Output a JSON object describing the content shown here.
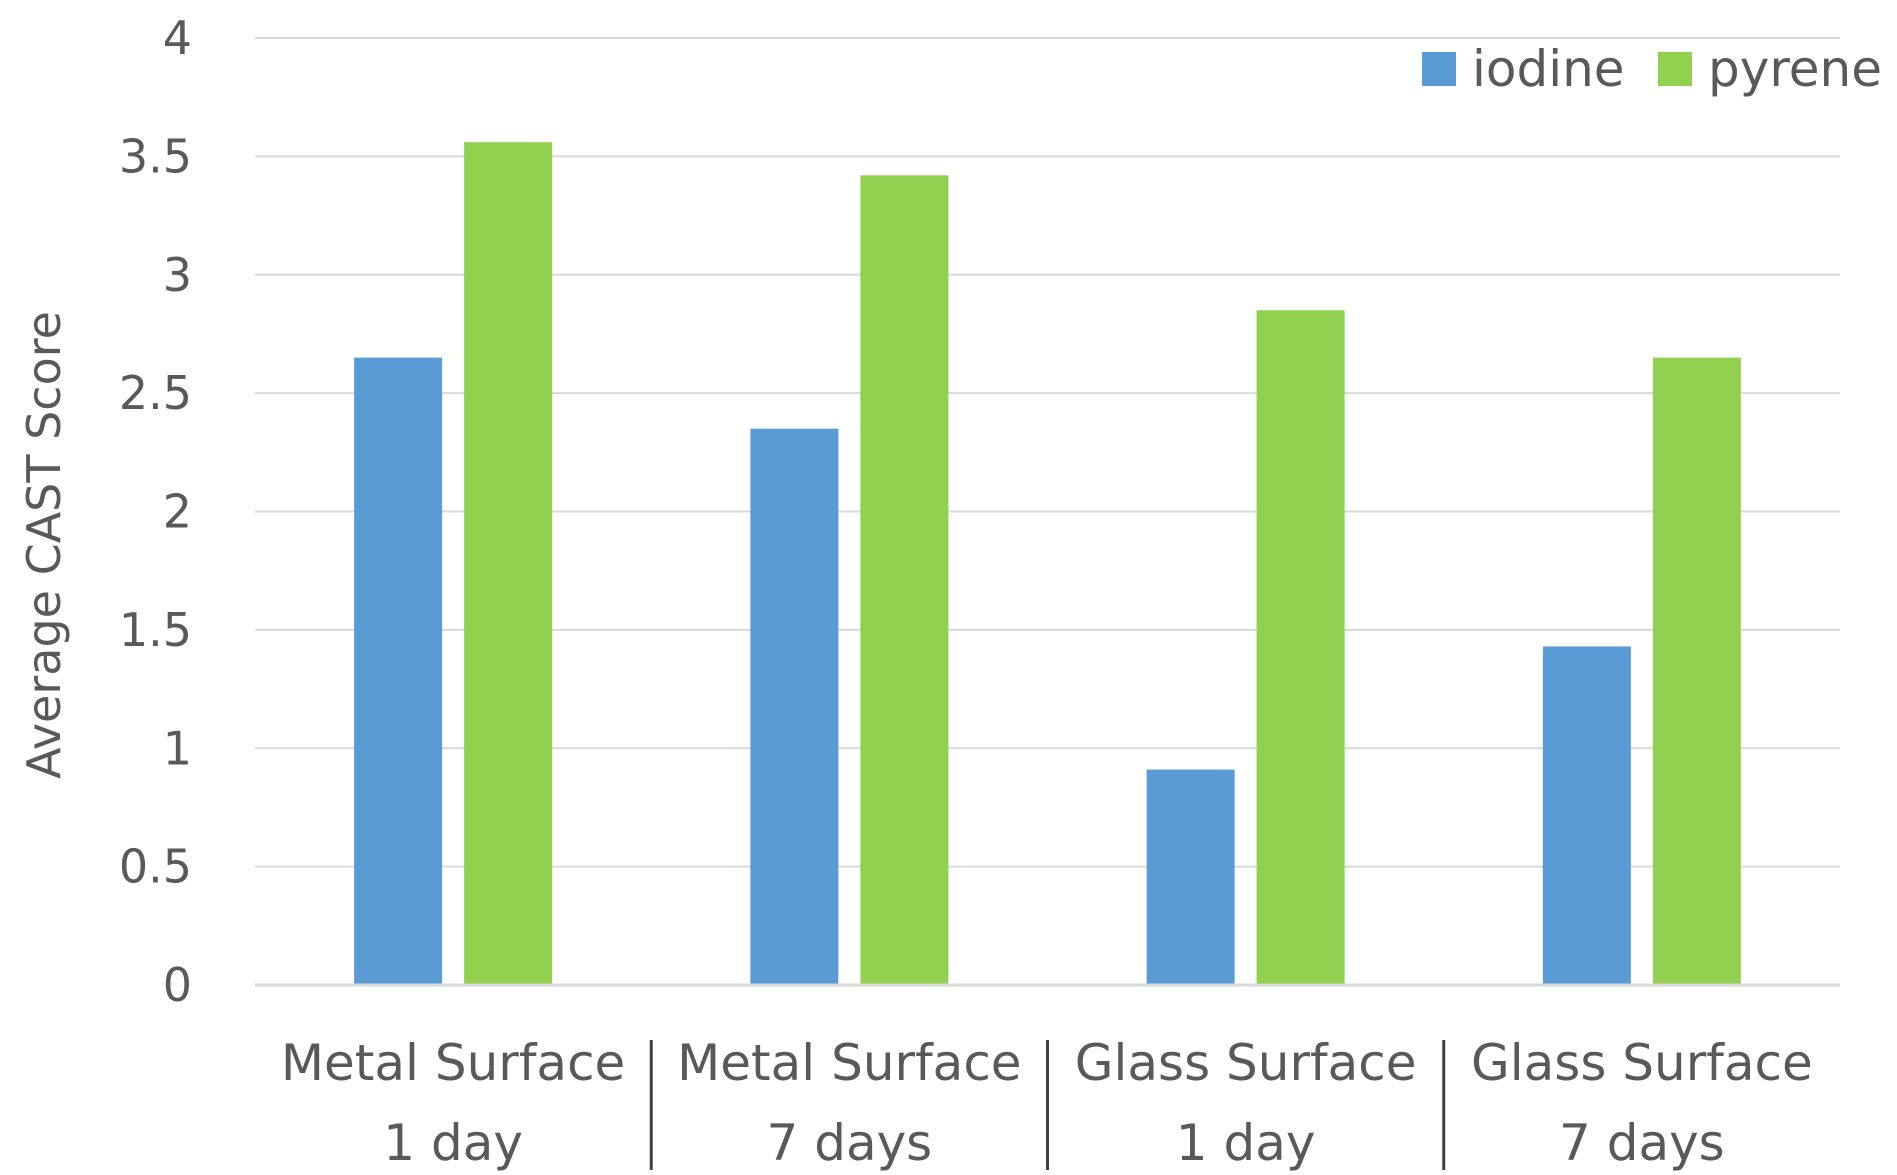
{
  "chart_data": {
    "type": "bar",
    "categories": [
      [
        "Metal Surface",
        "1 day"
      ],
      [
        "Metal Surface",
        "7 days"
      ],
      [
        "Glass Surface",
        "1 day"
      ],
      [
        "Glass Surface",
        "7 days"
      ]
    ],
    "series": [
      {
        "name": "iodine",
        "color": "#5b9bd5",
        "values": [
          2.65,
          2.35,
          0.91,
          1.43
        ]
      },
      {
        "name": "pyrene",
        "color": "#92d050",
        "values": [
          3.56,
          3.42,
          2.85,
          2.65
        ]
      }
    ],
    "ylabel": "Average CAST Score",
    "xlabel": "",
    "title": "",
    "ylim": [
      0,
      4
    ],
    "yticks": [
      "0",
      "0.5",
      "1",
      "1.5",
      "2",
      "2.5",
      "3",
      "3.5",
      "4"
    ],
    "grid": true,
    "legend_position": "top-right",
    "colors": {
      "text": "#595959",
      "gridline": "#d9d9d9",
      "separator": "#404040"
    }
  }
}
